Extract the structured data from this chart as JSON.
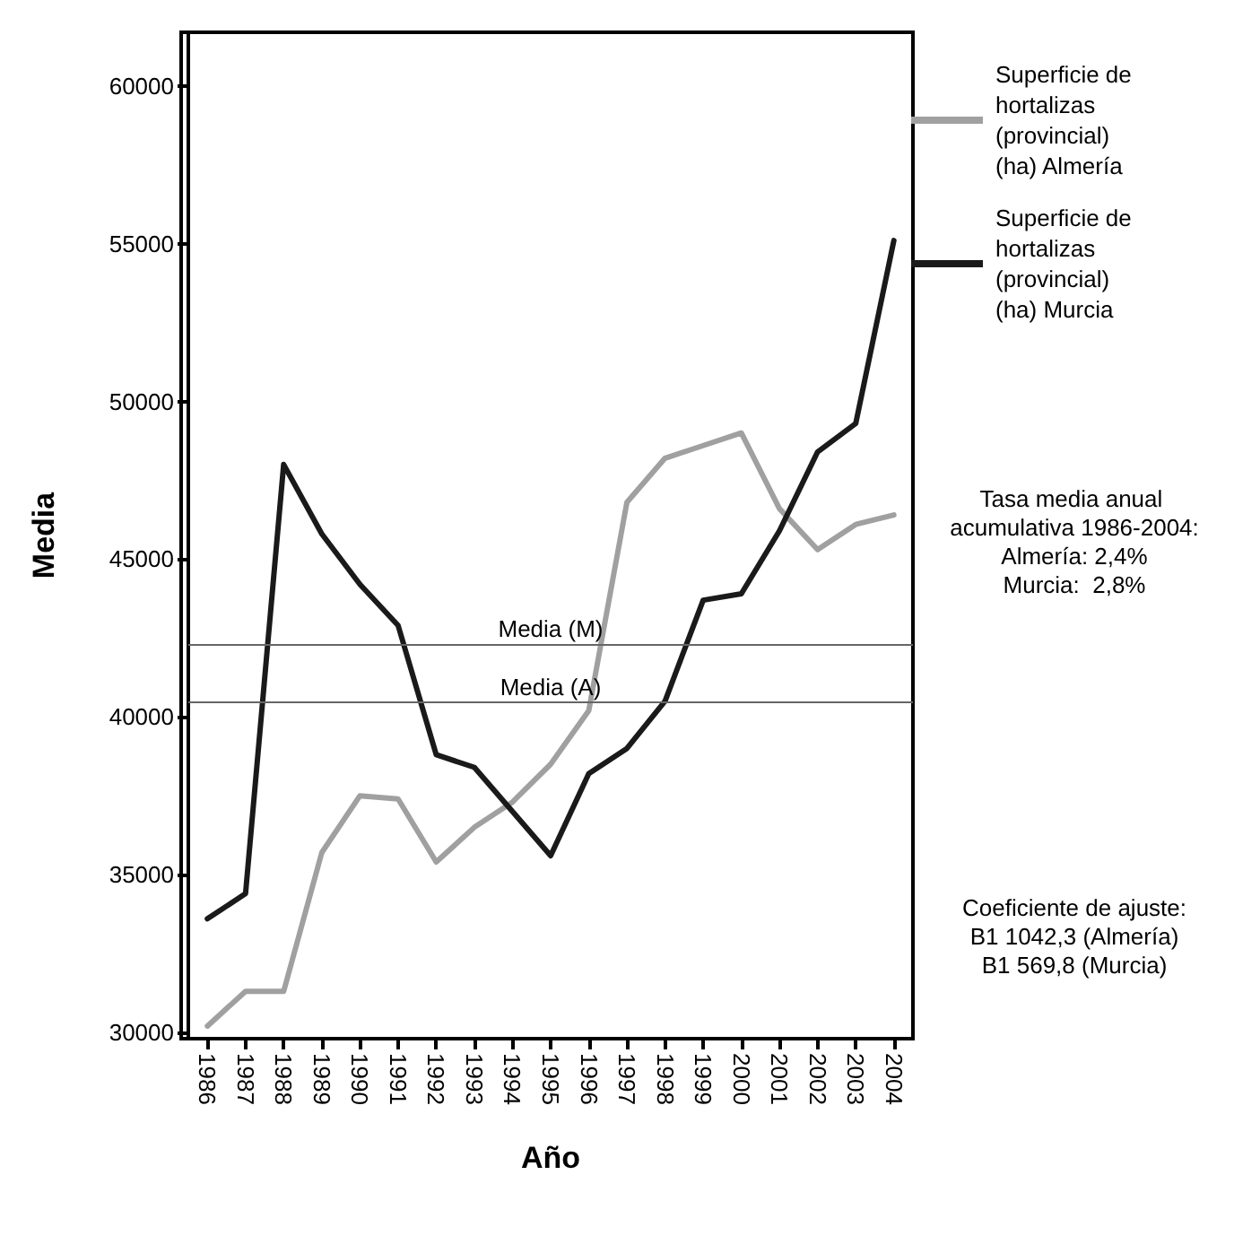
{
  "chart_data": {
    "type": "line",
    "xlabel": "Año",
    "ylabel": "Media",
    "categories": [
      "1986",
      "1987",
      "1988",
      "1989",
      "1990",
      "1991",
      "1992",
      "1993",
      "1994",
      "1995",
      "1996",
      "1997",
      "1998",
      "1999",
      "2000",
      "2001",
      "2002",
      "2003",
      "2004"
    ],
    "series": [
      {
        "name": "Superficie de hortalizas (provincial) (ha) Almería",
        "color": "#a0a0a0",
        "values": [
          30200,
          31300,
          31300,
          35700,
          37500,
          37400,
          35400,
          36500,
          37300,
          38500,
          40200,
          46800,
          48200,
          48600,
          49000,
          46600,
          45300,
          46100,
          46400
        ]
      },
      {
        "name": "Superficie de hortalizas (provincial) (ha) Murcia",
        "color": "#1a1a1a",
        "values": [
          33600,
          34400,
          48000,
          45800,
          44200,
          42900,
          38800,
          38400,
          37000,
          35600,
          38200,
          39000,
          40500,
          43700,
          43900,
          45900,
          48400,
          49300,
          55100
        ]
      }
    ],
    "ylim": [
      29800,
      61700
    ],
    "yticks": [
      30000,
      35000,
      40000,
      45000,
      50000,
      55000,
      60000
    ],
    "ref_lines": [
      {
        "axis": "y",
        "value": 42300,
        "label": "Media (M)",
        "color": "#666666"
      },
      {
        "axis": "y",
        "value": 40450,
        "label": "Media (A)",
        "color": "#666666"
      }
    ],
    "annotations": [
      "Tasa media anual acumulativa 1986-2004:\nAlmería: 2,4%\nMurcia:  2,8%",
      "Coeficiente de ajuste:\nB1 1042,3 (Almería)\nB1 569,8 (Murcia)"
    ],
    "grid": false,
    "legend": "top right",
    "marker": "none",
    "line_style": "solid"
  }
}
